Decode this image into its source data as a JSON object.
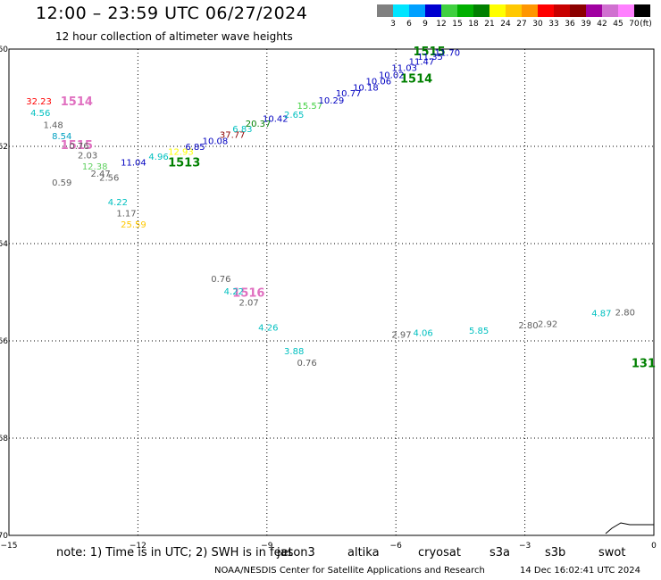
{
  "header": {
    "title": "12:00 – 23:59 UTC 06/27/2024",
    "subtitle": "12 hour collection of altimeter wave heights"
  },
  "colorbar": {
    "labels": [
      "3",
      "6",
      "9",
      "12",
      "15",
      "18",
      "21",
      "24",
      "27",
      "30",
      "33",
      "36",
      "39",
      "42",
      "45",
      "70"
    ],
    "unit": "(ft)",
    "colors": [
      "#808080",
      "#00e5ff",
      "#00a0ff",
      "#0000d0",
      "#40d040",
      "#00b000",
      "#008000",
      "#ffff00",
      "#ffc800",
      "#ff9600",
      "#ff0000",
      "#c80000",
      "#8b0000",
      "#a000a0",
      "#d070d0",
      "#ff80ff",
      "#000000"
    ]
  },
  "map": {
    "x_ticks": [
      "−15",
      "−12",
      "−9",
      "−6",
      "−3",
      "0"
    ],
    "y_ticks": [
      "−60",
      "−62",
      "−64",
      "−66",
      "−68",
      "−70"
    ],
    "x_range": [
      -15,
      0
    ],
    "y_range": [
      -70,
      -60
    ],
    "track_labels": [
      {
        "text": "1514",
        "lon": -13.8,
        "lat": -61.06,
        "color": "#e070c0"
      },
      {
        "text": "1515",
        "lon": -13.8,
        "lat": -61.96,
        "color": "#e070c0"
      },
      {
        "text": "1513",
        "lon": -11.3,
        "lat": -62.32,
        "color": "#008000"
      },
      {
        "text": "1515",
        "lon": -5.6,
        "lat": -60.04,
        "color": "#008000"
      },
      {
        "text": "1514",
        "lon": -5.9,
        "lat": -60.6,
        "color": "#008000"
      },
      {
        "text": "1516",
        "lon": -9.8,
        "lat": -65.0,
        "color": "#e070c0"
      },
      {
        "text": "131",
        "lon": 0,
        "lat": -66.45,
        "color": "#008000"
      }
    ],
    "readings": [
      {
        "v": "32.23",
        "lon": -14.6,
        "lat": -61.06,
        "color": "#ff0000"
      },
      {
        "v": "4.56",
        "lon": -14.5,
        "lat": -61.3,
        "color": "#00c0c0"
      },
      {
        "v": "1.48",
        "lon": -14.2,
        "lat": -61.55,
        "color": "#606060"
      },
      {
        "v": "8.54",
        "lon": -14.0,
        "lat": -61.78,
        "color": "#00a0c0"
      },
      {
        "v": "0.76",
        "lon": -13.6,
        "lat": -61.98,
        "color": "#606060"
      },
      {
        "v": "2.03",
        "lon": -13.4,
        "lat": -62.17,
        "color": "#606060"
      },
      {
        "v": "12.38",
        "lon": -13.3,
        "lat": -62.4,
        "color": "#60d060"
      },
      {
        "v": "2.47",
        "lon": -13.1,
        "lat": -62.55,
        "color": "#606060"
      },
      {
        "v": "2.56",
        "lon": -12.9,
        "lat": -62.63,
        "color": "#606060"
      },
      {
        "v": "0.59",
        "lon": -14.0,
        "lat": -62.73,
        "color": "#606060"
      },
      {
        "v": "4.22",
        "lon": -12.7,
        "lat": -63.14,
        "color": "#00c0c0"
      },
      {
        "v": "1.17",
        "lon": -12.5,
        "lat": -63.37,
        "color": "#606060"
      },
      {
        "v": "25.59",
        "lon": -12.4,
        "lat": -63.6,
        "color": "#ffc800"
      },
      {
        "v": "11.04",
        "lon": -12.4,
        "lat": -62.32,
        "color": "#0000c0"
      },
      {
        "v": "4.96",
        "lon": -11.75,
        "lat": -62.2,
        "color": "#00c0c0"
      },
      {
        "v": "12.93",
        "lon": -11.3,
        "lat": -62.1,
        "color": "#ffff00"
      },
      {
        "v": "6.85",
        "lon": -10.9,
        "lat": -62.0,
        "color": "#0000c0"
      },
      {
        "v": "10.08",
        "lon": -10.5,
        "lat": -61.88,
        "color": "#0000c0"
      },
      {
        "v": "37.77",
        "lon": -10.1,
        "lat": -61.75,
        "color": "#8b0000"
      },
      {
        "v": "6.83",
        "lon": -9.8,
        "lat": -61.63,
        "color": "#00c0c0"
      },
      {
        "v": "20.37",
        "lon": -9.5,
        "lat": -61.52,
        "color": "#008000"
      },
      {
        "v": "10.42",
        "lon": -9.1,
        "lat": -61.42,
        "color": "#0000c0"
      },
      {
        "v": "2.65",
        "lon": -8.6,
        "lat": -61.34,
        "color": "#00c0c0"
      },
      {
        "v": "15.57",
        "lon": -8.3,
        "lat": -61.16,
        "color": "#40d040"
      },
      {
        "v": "10.29",
        "lon": -7.8,
        "lat": -61.05,
        "color": "#0000c0"
      },
      {
        "v": "10.77",
        "lon": -7.4,
        "lat": -60.9,
        "color": "#0000c0"
      },
      {
        "v": "10.18",
        "lon": -7.0,
        "lat": -60.78,
        "color": "#0000c0"
      },
      {
        "v": "10.06",
        "lon": -6.7,
        "lat": -60.65,
        "color": "#0000c0"
      },
      {
        "v": "10.02",
        "lon": -6.4,
        "lat": -60.52,
        "color": "#0000c0"
      },
      {
        "v": "11.03",
        "lon": -6.1,
        "lat": -60.38,
        "color": "#0000c0"
      },
      {
        "v": "11.47",
        "lon": -5.7,
        "lat": -60.25,
        "color": "#0000c0"
      },
      {
        "v": "11.35",
        "lon": -5.5,
        "lat": -60.15,
        "color": "#0000c0"
      },
      {
        "v": "11.70",
        "lon": -5.1,
        "lat": -60.06,
        "color": "#0000c0"
      },
      {
        "v": "0.76",
        "lon": -10.3,
        "lat": -64.72,
        "color": "#606060"
      },
      {
        "v": "4.22",
        "lon": -10.0,
        "lat": -64.97,
        "color": "#00c0c0"
      },
      {
        "v": "2.07",
        "lon": -9.65,
        "lat": -65.2,
        "color": "#606060"
      },
      {
        "v": "4.26",
        "lon": -9.2,
        "lat": -65.72,
        "color": "#00c0c0"
      },
      {
        "v": "3.88",
        "lon": -8.6,
        "lat": -66.2,
        "color": "#00c0c0"
      },
      {
        "v": "0.76",
        "lon": -8.3,
        "lat": -66.44,
        "color": "#606060"
      },
      {
        "v": "2.97",
        "lon": -6.1,
        "lat": -65.86,
        "color": "#606060"
      },
      {
        "v": "4.06",
        "lon": -5.6,
        "lat": -65.83,
        "color": "#00c0c0"
      },
      {
        "v": "5.85",
        "lon": -4.3,
        "lat": -65.78,
        "color": "#00c0c0"
      },
      {
        "v": "2.80",
        "lon": -3.15,
        "lat": -65.67,
        "color": "#606060"
      },
      {
        "v": "2.92",
        "lon": -2.7,
        "lat": -65.64,
        "color": "#606060"
      },
      {
        "v": "4.87",
        "lon": -1.45,
        "lat": -65.42,
        "color": "#00c0c0"
      },
      {
        "v": "2.80",
        "lon": -0.9,
        "lat": -65.4,
        "color": "#606060"
      }
    ]
  },
  "bottom": {
    "note": "note:  1) Time is in UTC; 2) SWH is in feet",
    "satellites": [
      {
        "name": "jason3",
        "color": "#008000"
      },
      {
        "name": "altika",
        "color": "#ff9600"
      },
      {
        "name": "cryosat",
        "color": "#ff0000"
      },
      {
        "name": "s3a",
        "color": "#8b0000"
      },
      {
        "name": "s3b",
        "color": "#b0a0ff"
      },
      {
        "name": "swot",
        "color": "#ff80ff"
      }
    ],
    "footer": "NOAA/NESDIS Center for Satellite Applications and Research",
    "timestamp": "14 Dec 16:02:41 UTC 2024"
  }
}
